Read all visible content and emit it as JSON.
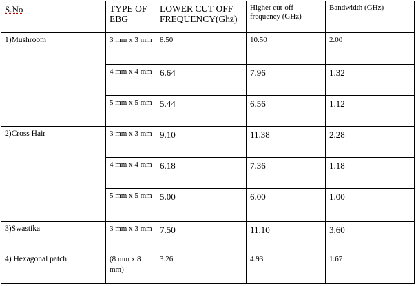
{
  "header": {
    "sno": "S.No",
    "type": "TYPE OF EBG",
    "lower": "LOWER CUT OFF FREQUENCY(Ghz)",
    "higher": "Higher cut-off frequency (GHz)",
    "bandwidth": "Bandwidth (GHz)"
  },
  "groups": [
    {
      "label": "1)Mushroom",
      "rows": [
        {
          "type": "3 mm x 3 mm",
          "lower": "8.50",
          "higher": "10.50",
          "bandwidth": "2.00"
        },
        {
          "type": "4 mm x 4 mm",
          "lower": "6.64",
          "higher": "7.96",
          "bandwidth": "1.32"
        },
        {
          "type": "5 mm x 5 mm",
          "lower": "5.44",
          "higher": "6.56",
          "bandwidth": "1.12"
        }
      ]
    },
    {
      "label": "2)Cross Hair",
      "rows": [
        {
          "type": "3 mm x 3 mm",
          "lower": "9.10",
          "higher": "11.38",
          "bandwidth": "2.28"
        },
        {
          "type": "4 mm x 4 mm",
          "lower": "6.18",
          "higher": "7.36",
          "bandwidth": "1.18"
        },
        {
          "type": "5 mm x 5 mm",
          "lower": "5.00",
          "higher": "6.00",
          "bandwidth": "1.00"
        }
      ]
    },
    {
      "label": "3)Swastika",
      "rows": [
        {
          "type": "3 mm x 3 mm",
          "lower": "7.50",
          "higher": "11.10",
          "bandwidth": "3.60"
        }
      ]
    },
    {
      "label": "4) Hexagonal patch",
      "rows": [
        {
          "type": "(8 mm x 8 mm)",
          "lower": "3.26",
          "higher": "4.93",
          "bandwidth": "1.67"
        }
      ]
    }
  ]
}
